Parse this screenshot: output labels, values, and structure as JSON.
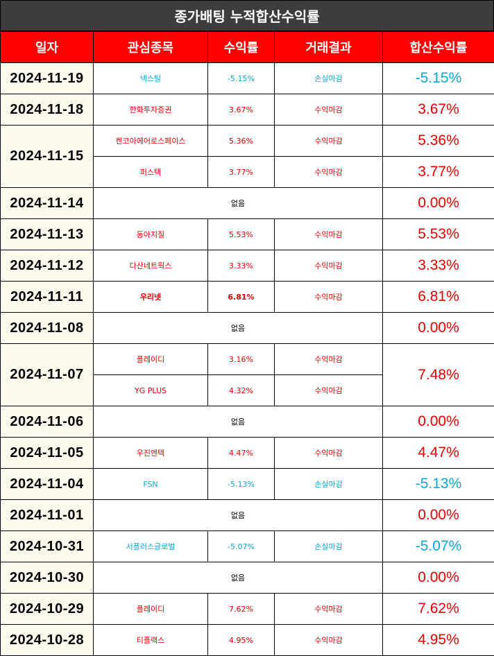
{
  "title": "종가배팅 누적합산수익률",
  "headers": {
    "date": "일자",
    "stock": "관심종목",
    "return": "수익률",
    "result": "거래결과",
    "total": "합산수익률"
  },
  "none_text": "없음",
  "colors": {
    "header_bg": "#fe0000",
    "title_bg": "#3d3d3d",
    "positive": "#e60000",
    "negative": "#0ba5d6",
    "date_bg": "#fdfbee"
  },
  "rows": [
    {
      "date": "2024-11-19",
      "total": "-5.15%",
      "total_sign": "neg",
      "trades": [
        {
          "stock": "넥스틸",
          "return": "-5.15%",
          "result": "손실마감",
          "sign": "neg"
        }
      ]
    },
    {
      "date": "2024-11-18",
      "total": "3.67%",
      "total_sign": "pos",
      "trades": [
        {
          "stock": "한화투자증권",
          "return": "3.67%",
          "result": "수익마감",
          "sign": "pos"
        }
      ]
    },
    {
      "date": "2024-11-15",
      "total_split": [
        "5.36%",
        "3.77%"
      ],
      "total_sign": "pos",
      "trades": [
        {
          "stock": "켄코아에어로스페이스",
          "return": "5.36%",
          "result": "수익마감",
          "sign": "pos"
        },
        {
          "stock": "퍼스텍",
          "return": "3.77%",
          "result": "수익마감",
          "sign": "pos"
        }
      ]
    },
    {
      "date": "2024-11-14",
      "total": "0.00%",
      "total_sign": "zero",
      "trades": []
    },
    {
      "date": "2024-11-13",
      "total": "5.53%",
      "total_sign": "pos",
      "trades": [
        {
          "stock": "동아지질",
          "return": "5.53%",
          "result": "수익마감",
          "sign": "pos"
        }
      ]
    },
    {
      "date": "2024-11-12",
      "total": "3.33%",
      "total_sign": "pos",
      "trades": [
        {
          "stock": "다산네트웍스",
          "return": "3.33%",
          "result": "수익마감",
          "sign": "pos"
        }
      ]
    },
    {
      "date": "2024-11-11",
      "total": "6.81%",
      "total_sign": "pos",
      "trades": [
        {
          "stock": "우리넷",
          "return": "6.81%",
          "result": "수익마감",
          "sign": "pos",
          "bold": true
        }
      ]
    },
    {
      "date": "2024-11-08",
      "total": "0.00%",
      "total_sign": "zero",
      "trades": []
    },
    {
      "date": "2024-11-07",
      "total": "7.48%",
      "total_sign": "pos",
      "trades": [
        {
          "stock": "플레이디",
          "return": "3.16%",
          "result": "수익마감",
          "sign": "pos"
        },
        {
          "stock": "YG PLUS",
          "return": "4.32%",
          "result": "수익마감",
          "sign": "pos"
        }
      ]
    },
    {
      "date": "2024-11-06",
      "total": "0.00%",
      "total_sign": "zero",
      "trades": []
    },
    {
      "date": "2024-11-05",
      "total": "4.47%",
      "total_sign": "pos",
      "trades": [
        {
          "stock": "우진엔텍",
          "return": "4.47%",
          "result": "수익마감",
          "sign": "pos"
        }
      ]
    },
    {
      "date": "2024-11-04",
      "total": "-5.13%",
      "total_sign": "neg",
      "trades": [
        {
          "stock": "FSN",
          "return": "-5.13%",
          "result": "손실마감",
          "sign": "neg"
        }
      ]
    },
    {
      "date": "2024-11-01",
      "total": "0.00%",
      "total_sign": "zero",
      "trades": []
    },
    {
      "date": "2024-10-31",
      "total": "-5.07%",
      "total_sign": "neg",
      "trades": [
        {
          "stock": "서플러스글로벌",
          "return": "-5.07%",
          "result": "손실마감",
          "sign": "neg"
        }
      ]
    },
    {
      "date": "2024-10-30",
      "total": "0.00%",
      "total_sign": "zero",
      "trades": []
    },
    {
      "date": "2024-10-29",
      "total": "7.62%",
      "total_sign": "pos",
      "trades": [
        {
          "stock": "플레이디",
          "return": "7.62%",
          "result": "수익마감",
          "sign": "pos"
        }
      ]
    },
    {
      "date": "2024-10-28",
      "total": "4.95%",
      "total_sign": "pos",
      "trades": [
        {
          "stock": "티플랙스",
          "return": "4.95%",
          "result": "수익마감",
          "sign": "pos"
        }
      ]
    }
  ]
}
